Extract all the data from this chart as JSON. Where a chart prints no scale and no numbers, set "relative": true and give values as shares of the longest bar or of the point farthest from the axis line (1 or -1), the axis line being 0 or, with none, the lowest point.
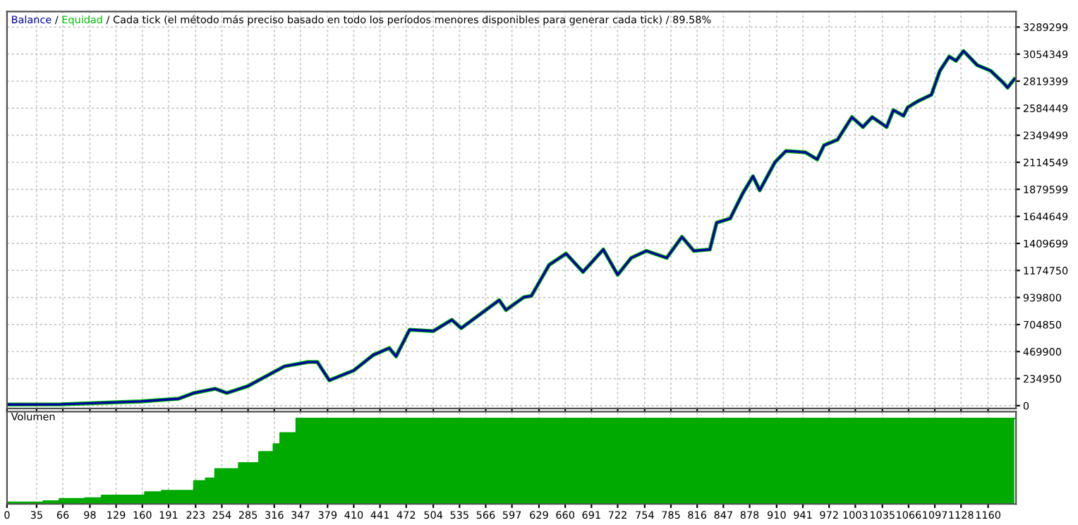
{
  "chart_data": [
    {
      "type": "line",
      "annotations": [
        "/",
        "/"
      ],
      "title": "Cada tick (el método más preciso basado en todo los períodos menores disponibles para generar cada tick) / 89.58%",
      "legend": "top left",
      "grid": true,
      "tick_labels": "y",
      "xlim": [
        0,
        1193
      ],
      "ylim": [
        -24000,
        3424000
      ],
      "yticks": [
        0,
        234950,
        469900,
        704850,
        939800,
        1174750,
        1409699,
        1644649,
        1879599,
        2114549,
        2349499,
        2584449,
        2819399,
        3054349,
        3289299
      ],
      "x": [
        0,
        64,
        158,
        203,
        221,
        246,
        260,
        285,
        328,
        356,
        367,
        381,
        410,
        433,
        452,
        460,
        476,
        504,
        526,
        537,
        582,
        590,
        611,
        620,
        641,
        661,
        681,
        705,
        722,
        738,
        756,
        780,
        798,
        812,
        831,
        839,
        855,
        870,
        882,
        890,
        908,
        921,
        944,
        958,
        966,
        982,
        999,
        1012,
        1023,
        1040,
        1048,
        1060,
        1065,
        1076,
        1093,
        1103,
        1114,
        1122,
        1131,
        1139,
        1147,
        1163,
        1177,
        1183,
        1191
      ],
      "series": [
        {
          "name": "Balance",
          "color": "#0000a0",
          "values": [
            10000,
            12000,
            37000,
            61000,
            110000,
            147000,
            110000,
            171000,
            342000,
            379000,
            379000,
            220000,
            306000,
            440000,
            501000,
            428000,
            660000,
            648000,
            746000,
            673000,
            917000,
            831000,
            942000,
            954000,
            1223000,
            1321000,
            1162000,
            1357000,
            1137000,
            1284000,
            1345000,
            1284000,
            1467000,
            1345000,
            1357000,
            1590000,
            1626000,
            1846000,
            1993000,
            1871000,
            2115000,
            2213000,
            2201000,
            2140000,
            2262000,
            2311000,
            2507000,
            2421000,
            2507000,
            2421000,
            2568000,
            2519000,
            2592000,
            2641000,
            2702000,
            2910000,
            3033000,
            2996000,
            3081000,
            3020000,
            2959000,
            2910000,
            2812000,
            2763000,
            2837000
          ]
        },
        {
          "name": "Equidad",
          "color": "#00c000",
          "values": [
            10000,
            12000,
            37000,
            61000,
            110000,
            147000,
            110000,
            171000,
            342000,
            379000,
            379000,
            220000,
            306000,
            440000,
            501000,
            428000,
            660000,
            648000,
            746000,
            673000,
            917000,
            831000,
            942000,
            954000,
            1223000,
            1321000,
            1162000,
            1357000,
            1137000,
            1284000,
            1345000,
            1284000,
            1467000,
            1345000,
            1357000,
            1590000,
            1626000,
            1846000,
            1993000,
            1871000,
            2115000,
            2213000,
            2201000,
            2140000,
            2262000,
            2311000,
            2507000,
            2421000,
            2507000,
            2421000,
            2568000,
            2519000,
            2592000,
            2641000,
            2702000,
            2910000,
            3033000,
            2996000,
            3081000,
            3020000,
            2959000,
            2910000,
            2812000,
            2763000,
            2837000
          ]
        }
      ]
    },
    {
      "type": "area",
      "title": "Volumen",
      "relative": true,
      "grid": true,
      "tick_labels": "x",
      "xlim": [
        0,
        1193
      ],
      "xticks": [
        0,
        35,
        66,
        98,
        129,
        160,
        191,
        223,
        254,
        285,
        316,
        347,
        379,
        410,
        441,
        472,
        504,
        535,
        566,
        597,
        629,
        660,
        691,
        722,
        754,
        785,
        816,
        847,
        878,
        910,
        941,
        972,
        1003,
        1035,
        1066,
        1097,
        1128,
        1160
      ],
      "x": [
        0,
        43,
        43,
        62,
        62,
        92,
        92,
        112,
        112,
        163,
        163,
        183,
        183,
        221,
        221,
        235,
        235,
        246,
        246,
        274,
        274,
        298,
        298,
        315,
        315,
        323,
        323,
        342,
        342,
        1191
      ],
      "series": [
        {
          "color": "#00aa00",
          "values": [
            0.02,
            0.02,
            0.035,
            0.035,
            0.06,
            0.06,
            0.07,
            0.07,
            0.1,
            0.1,
            0.14,
            0.14,
            0.155,
            0.155,
            0.27,
            0.27,
            0.3,
            0.3,
            0.41,
            0.41,
            0.48,
            0.48,
            0.61,
            0.61,
            0.7,
            0.7,
            0.83,
            0.83,
            1,
            1
          ]
        }
      ]
    }
  ]
}
